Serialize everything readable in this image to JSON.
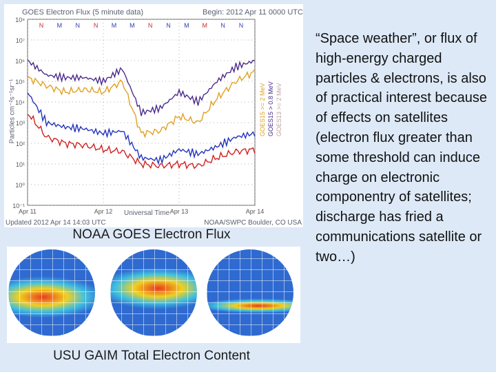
{
  "chart_caption": "NOAA GOES Electron Flux",
  "globes_caption": "USU GAIM Total Electron Content",
  "body_text": "“Space weather”, or flux of high-energy charged particles & electrons, is also of practical interest because of effects on satellites (electron flux greater than some threshold can induce charge on electronic componentry of satellites; discharge has fried a communications satellite or two…)",
  "flux_chart": {
    "title": "GOES Electron Flux (5 minute data)",
    "begin": "Begin: 2012 Apr 11 0000 UTC",
    "updated": "Updated 2012 Apr 14 14:03 UTC",
    "credit": "NOAA/SWPC Boulder, CO USA",
    "ylabel": "Particles cm⁻²s⁻¹sr⁻¹",
    "xlabel": "Universal Time",
    "xticks": [
      "Apr 11",
      "Apr 12",
      "Apr 13",
      "Apr 14"
    ],
    "yticks": [
      "10⁸",
      "10⁷",
      "10⁶",
      "10⁵",
      "10⁴",
      "10³",
      "10²",
      "10¹",
      "10⁰",
      "10⁻¹"
    ],
    "magnetometer_flags": [
      "N",
      "M",
      "N",
      "N",
      "M",
      "M",
      "N",
      "N",
      "M",
      "M",
      "N",
      "N"
    ],
    "legend": [
      {
        "label": "GOES15  >= 2 MeV",
        "color": "#e0a020"
      },
      {
        "label": "GOES15  > 0.8 MeV",
        "color": "#4a2a8a"
      },
      {
        "label": "GOES13  >= 2 MeV",
        "color": "#c0a0a0"
      }
    ]
  },
  "chart_data": {
    "type": "line",
    "x": [
      0,
      0.25,
      0.5,
      0.75,
      1.0,
      1.25,
      1.5,
      1.75,
      2.0,
      2.25,
      2.5,
      2.75,
      3.0
    ],
    "ylabel": "Particles cm⁻²s⁻¹sr⁻¹",
    "xlabel": "Universal Time",
    "yscale": "log",
    "ylim": [
      0.1,
      100000000
    ],
    "series": [
      {
        "name": "GOES15 >= 2 MeV",
        "color": "#e0a020",
        "values": [
          150000,
          60000,
          30000,
          40000,
          30000,
          100000,
          300,
          400,
          2000,
          1000,
          15000,
          100000,
          300000
        ]
      },
      {
        "name": "GOES15 > 0.8 MeV",
        "color": "#4a2a8a",
        "values": [
          1000000,
          200000,
          150000,
          150000,
          100000,
          400000,
          3000,
          5000,
          30000,
          10000,
          100000,
          500000,
          1000000
        ]
      },
      {
        "name": "",
        "color": "#2233bb",
        "values": [
          30000,
          1000,
          600,
          500,
          300,
          400,
          20,
          15,
          50,
          30,
          70,
          200,
          300
        ]
      },
      {
        "name": "",
        "color": "#d02020",
        "values": [
          3000,
          200,
          100,
          80,
          50,
          40,
          10,
          8,
          10,
          8,
          20,
          40,
          50
        ]
      }
    ]
  },
  "globe_colors": {
    "ocean": "#2f6ad0",
    "high": "#e83a20",
    "mid": "#f0d020",
    "low": "#40c0e0"
  }
}
